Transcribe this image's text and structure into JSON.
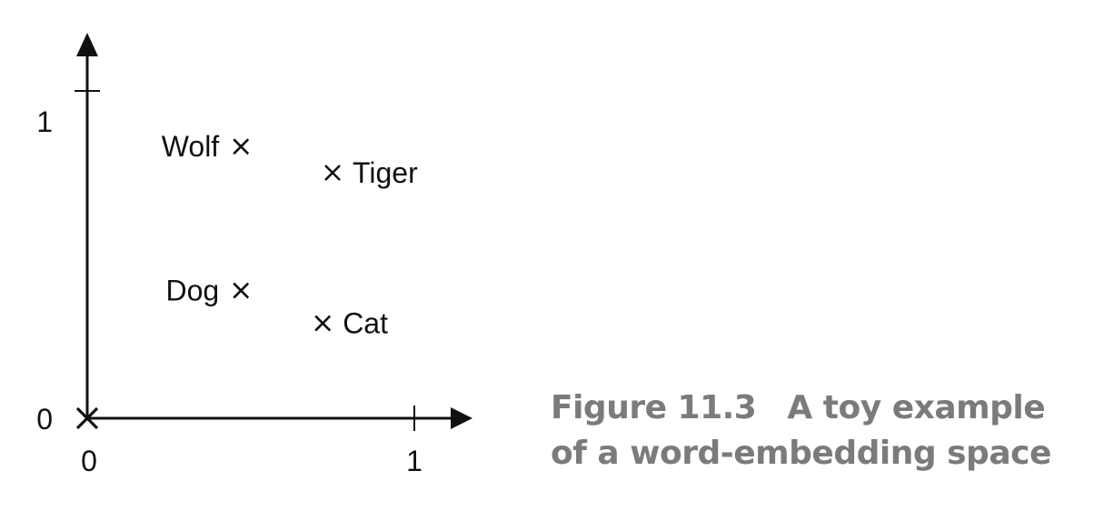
{
  "chart_data": {
    "type": "scatter",
    "title": "",
    "xlabel": "",
    "ylabel": "",
    "xlim": [
      0,
      1
    ],
    "ylim": [
      0,
      1
    ],
    "x_ticks": [
      {
        "value": 0,
        "label": "0"
      },
      {
        "value": 1,
        "label": "1"
      }
    ],
    "y_ticks": [
      {
        "value": 0,
        "label": "0"
      },
      {
        "value": 1,
        "label": "1"
      }
    ],
    "origin_marker": "X",
    "points": [
      {
        "label": "Wolf",
        "x": 0.47,
        "y": 0.83,
        "label_side": "left"
      },
      {
        "label": "Tiger",
        "x": 0.75,
        "y": 0.75,
        "label_side": "right"
      },
      {
        "label": "Dog",
        "x": 0.47,
        "y": 0.39,
        "label_side": "left"
      },
      {
        "label": "Cat",
        "x": 0.72,
        "y": 0.29,
        "label_side": "right"
      }
    ],
    "marker": "×"
  },
  "caption": {
    "figure_number": "Figure 11.3",
    "line1_text": "A toy example",
    "line2": "of a word-embedding space"
  },
  "colors": {
    "ink": "#111111",
    "caption": "#7b7b7b"
  }
}
